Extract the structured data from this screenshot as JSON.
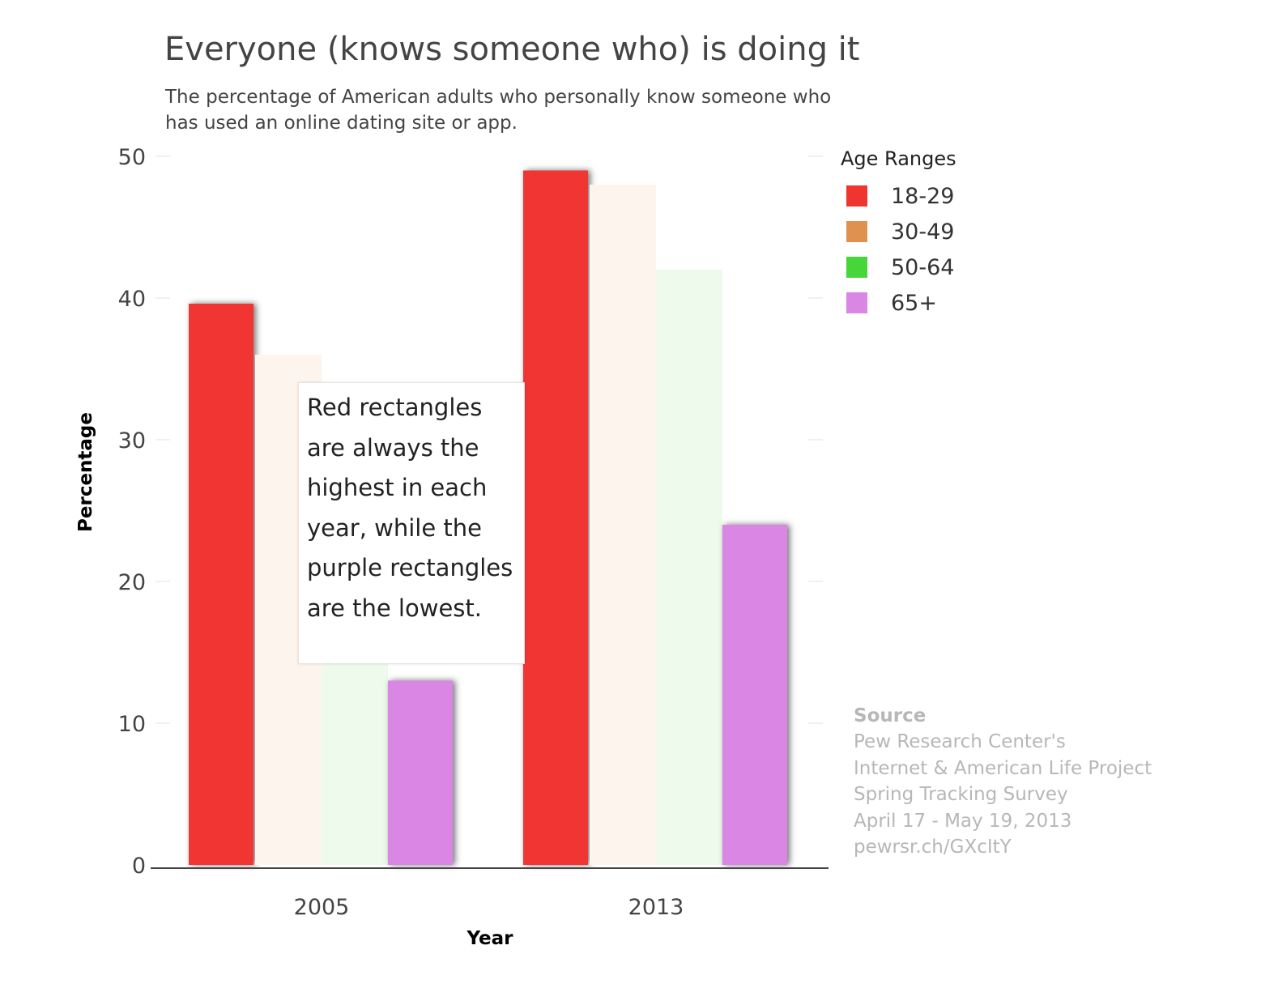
{
  "chart_data": {
    "type": "bar",
    "title": "Everyone (knows someone who) is doing it",
    "subtitle": "The percentage of American adults who personally know someone who has used an online dating site or app.",
    "xlabel": "Year",
    "ylabel": "Percentage",
    "categories": [
      "2005",
      "2013"
    ],
    "ylim": [
      0,
      50
    ],
    "yticks": [
      0,
      10,
      20,
      30,
      40,
      50
    ],
    "grid": true,
    "legend": {
      "title": "Age Ranges",
      "placement": "right"
    },
    "series": [
      {
        "name": "18-29",
        "values": [
          39.6,
          49
        ],
        "color": "#f03530",
        "highlighted": true
      },
      {
        "name": "30-49",
        "values": [
          36,
          48
        ],
        "color": "#df914f",
        "highlighted": false
      },
      {
        "name": "50-64",
        "values": [
          17,
          42
        ],
        "color": "#47d63a",
        "highlighted": false
      },
      {
        "name": "65+",
        "values": [
          13,
          24
        ],
        "color": "#d986e5",
        "highlighted": true
      }
    ],
    "faded_colors": {
      "30-49": "#fdf4ee",
      "50-64": "#eefaec"
    },
    "annotation": "Red rectangles are always the highest in each year, while the purple rectangles are the lowest."
  },
  "source": {
    "heading": "Source",
    "lines": [
      "Pew Research Center's",
      "Internet & American Life Project",
      "Spring Tracking Survey",
      "April 17 - May 19, 2013",
      "pewrsr.ch/GXcItY"
    ]
  }
}
